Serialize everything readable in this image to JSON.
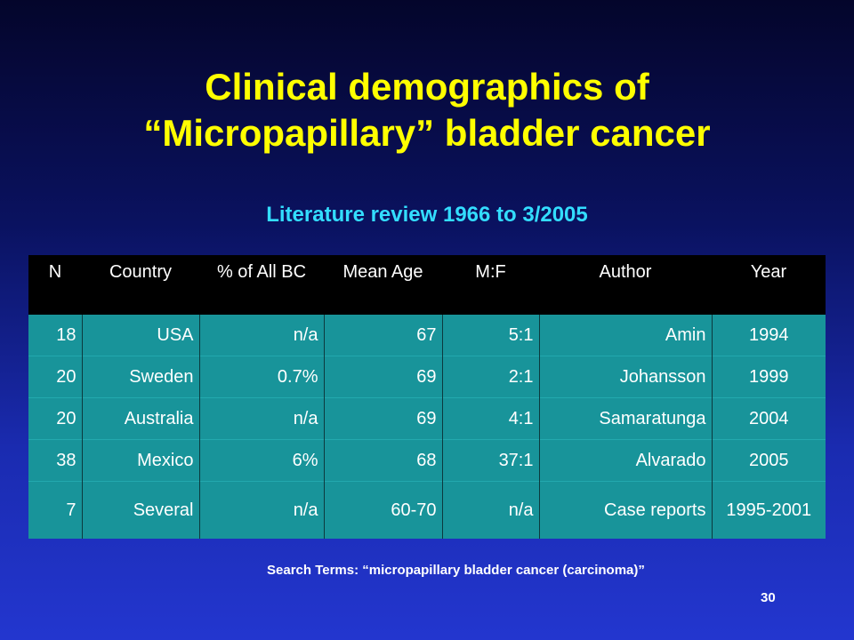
{
  "title": {
    "line1": "Clinical demographics of",
    "line2": "“Micropapillary” bladder cancer"
  },
  "subtitle": "Literature review 1966 to 3/2005",
  "table": {
    "headers": [
      "N",
      "Country",
      "% of All BC",
      "Mean Age",
      "M:F",
      "Author",
      "Year"
    ],
    "rows": [
      [
        "18",
        "USA",
        "n/a",
        "67",
        "5:1",
        "Amin",
        "1994"
      ],
      [
        "20",
        "Sweden",
        "0.7%",
        "69",
        "2:1",
        "Johansson",
        "1999"
      ],
      [
        "20",
        "Australia",
        "n/a",
        "69",
        "4:1",
        "Samaratunga",
        "2004"
      ],
      [
        "38",
        "Mexico",
        "6%",
        "68",
        "37:1",
        "Alvarado",
        "2005"
      ],
      [
        "7",
        "Several",
        "n/a",
        "60-70",
        "n/a",
        "Case reports",
        "1995-2001"
      ]
    ]
  },
  "search_terms": "Search Terms: “micropapillary bladder cancer (carcinoma)”",
  "page_number": "30",
  "colors": {
    "title": "#ffff00",
    "subtitle": "#33ddff",
    "table_header_bg": "#000000",
    "table_cell_bg": "#18949a"
  }
}
